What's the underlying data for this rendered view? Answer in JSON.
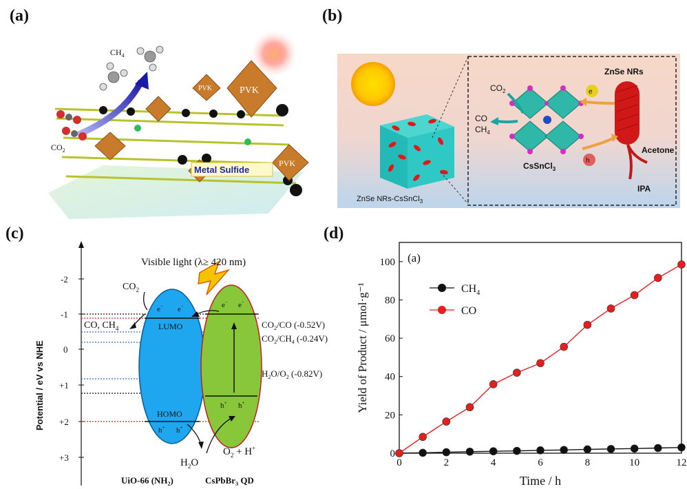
{
  "panels": {
    "a": {
      "label": "(a)",
      "ch4": "CH",
      "ch4_sub": "4",
      "co2": "CO",
      "co2_sub": "2",
      "pvk": "PVK",
      "metal_sulfide": "Metal Sulfide"
    },
    "b": {
      "label": "(b)",
      "composite": "ZnSe NRs-CsSnCl",
      "composite_sub": "3",
      "co2": "CO",
      "co2_sub": "2",
      "co": "CO",
      "ch4": "CH",
      "ch4_sub": "4",
      "electron": "e",
      "hole": "h",
      "perovskite": "CsSnCl",
      "perovskite_sub": "3",
      "znse": "ZnSe NRs",
      "acetone": "Acetone",
      "ipa": "IPA"
    },
    "c": {
      "label": "(c)",
      "ylabel": "Potential / eV vs NHE",
      "ticks": [
        "-2",
        "-1",
        "0",
        "+1",
        "+2",
        "+3"
      ],
      "visible_light": "Visible light (λ≥ 420 nm)",
      "co2": "CO",
      "co2_sub": "2",
      "products": "CO, CH",
      "products_sub": "4",
      "lumo": "LUMO",
      "homo": "HOMO",
      "electron": "e",
      "hole": "h",
      "co2_co": "CO",
      "co2_co_rest": "/CO (-0.52V)",
      "co2_ch4": "CO",
      "co2_ch4_rest": "/CH",
      "co2_ch4_tail": " (-0.24V)",
      "h2o_o2": "H",
      "h2o_o2_mid": "O/O",
      "h2o_o2_tail": " (-0.82V)",
      "h2o": "H",
      "h2o_tail": "O",
      "o2_h": "O",
      "o2_h_mid": " + H",
      "uio": "UiO-66 (NH",
      "uio_tail": ")",
      "cspbbr3": "CsPbBr",
      "cspbbr3_tail": " QD"
    },
    "d": {
      "label": "(d)",
      "inner_label": "(a)"
    }
  },
  "colors": {
    "uio_blue": "#1ea7ee",
    "qd_green": "#88c63a",
    "co_red": "#e41f1f",
    "ch4_black": "#111111",
    "sky_top": "#f6d9cc",
    "sky_bottom": "#bcd4ea"
  },
  "chart_data": {
    "type": "line",
    "xlabel": "Time / h",
    "ylabel": "Yield of Product / μmol·g⁻¹",
    "xlim": [
      0,
      12
    ],
    "ylim": [
      0,
      110
    ],
    "xticks": [
      0,
      2,
      4,
      6,
      8,
      10,
      12
    ],
    "yticks": [
      0,
      20,
      40,
      60,
      80,
      100
    ],
    "grid": false,
    "legend_position": "top-left",
    "series": [
      {
        "name": "CH",
        "name_sub": "4",
        "color": "#111111",
        "x": [
          0,
          1,
          2,
          3,
          4,
          5,
          6,
          7,
          8,
          9,
          10,
          11,
          12
        ],
        "values": [
          0,
          0.2,
          0.5,
          0.8,
          1.0,
          1.2,
          1.5,
          1.7,
          2.0,
          2.2,
          2.4,
          2.7,
          3.0
        ]
      },
      {
        "name": "CO",
        "color": "#e41f1f",
        "x": [
          0,
          1,
          2,
          3,
          4,
          5,
          6,
          7,
          8,
          9,
          10,
          11,
          12
        ],
        "values": [
          0,
          8.5,
          16.5,
          24,
          36,
          42,
          47,
          55.5,
          67,
          75.5,
          82.5,
          91.5,
          98.5
        ]
      }
    ]
  }
}
